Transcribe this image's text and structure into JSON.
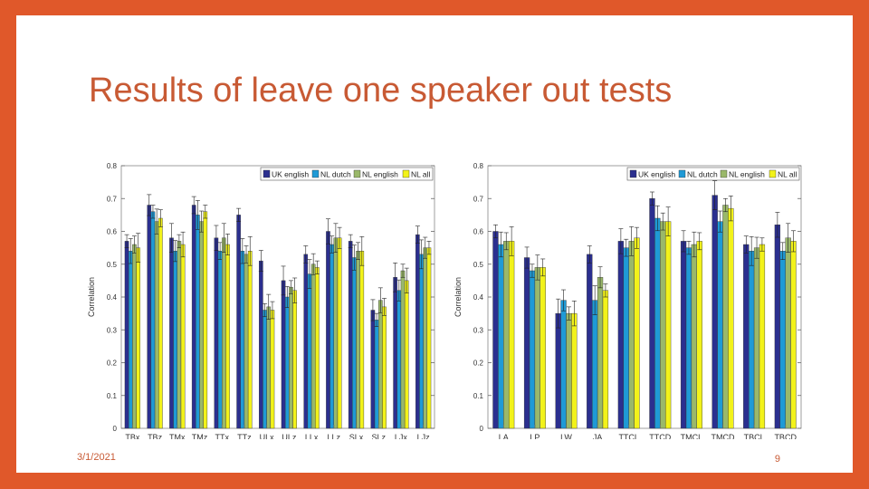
{
  "slide": {
    "title": "Results of leave one speaker out tests",
    "date": "3/1/2021",
    "page_number": "9"
  },
  "colors": {
    "background": "#e0582a",
    "title": "#c85a34",
    "series": [
      "#2b2f8f",
      "#1f9ad6",
      "#9ab86a",
      "#f2f21a"
    ]
  },
  "chart_data": [
    {
      "type": "bar",
      "ylabel": "Correlation",
      "ylim": [
        0,
        0.8
      ],
      "yticks": [
        "0",
        "0.1",
        "0.2",
        "0.3",
        "0.4",
        "0.5",
        "0.6",
        "0.7",
        "0.8"
      ],
      "legend_position": "top-right",
      "grid": false,
      "error_bars": true,
      "categories": [
        "TBx",
        "TBz",
        "TMx",
        "TMz",
        "TTx",
        "TTz",
        "ULx",
        "ULz",
        "LLx",
        "LLz",
        "SLx",
        "SLz",
        "LJx",
        "LJz"
      ],
      "series": [
        {
          "name": "UK english",
          "values": [
            0.57,
            0.68,
            0.58,
            0.68,
            0.58,
            0.65,
            0.51,
            0.45,
            0.53,
            0.6,
            0.57,
            0.36,
            0.46,
            0.59
          ]
        },
        {
          "name": "NL dutch",
          "values": [
            0.54,
            0.66,
            0.54,
            0.65,
            0.54,
            0.54,
            0.36,
            0.4,
            0.47,
            0.56,
            0.52,
            0.33,
            0.42,
            0.53
          ]
        },
        {
          "name": "NL english",
          "values": [
            0.56,
            0.63,
            0.57,
            0.63,
            0.58,
            0.53,
            0.37,
            0.43,
            0.5,
            0.58,
            0.54,
            0.39,
            0.48,
            0.55
          ]
        },
        {
          "name": "NL all",
          "values": [
            0.55,
            0.64,
            0.56,
            0.66,
            0.56,
            0.54,
            0.36,
            0.42,
            0.49,
            0.58,
            0.54,
            0.37,
            0.45,
            0.55
          ]
        }
      ]
    },
    {
      "type": "bar",
      "ylabel": "Correlation",
      "ylim": [
        0,
        0.8
      ],
      "yticks": [
        "0",
        "0.1",
        "0.2",
        "0.3",
        "0.4",
        "0.5",
        "0.6",
        "0.7",
        "0.8"
      ],
      "legend_position": "top-right",
      "grid": false,
      "error_bars": true,
      "categories": [
        "LA",
        "LP",
        "LW",
        "JA",
        "TTCL",
        "TTCD",
        "TMCL",
        "TMCD",
        "TBCL",
        "TBCD"
      ],
      "series": [
        {
          "name": "UK english",
          "values": [
            0.6,
            0.52,
            0.35,
            0.53,
            0.57,
            0.7,
            0.57,
            0.71,
            0.56,
            0.62
          ]
        },
        {
          "name": "NL dutch",
          "values": [
            0.56,
            0.48,
            0.39,
            0.39,
            0.55,
            0.64,
            0.55,
            0.63,
            0.54,
            0.54
          ]
        },
        {
          "name": "NL english",
          "values": [
            0.57,
            0.49,
            0.35,
            0.46,
            0.57,
            0.63,
            0.56,
            0.68,
            0.55,
            0.58
          ]
        },
        {
          "name": "NL all",
          "values": [
            0.57,
            0.49,
            0.35,
            0.42,
            0.58,
            0.63,
            0.57,
            0.67,
            0.56,
            0.57
          ]
        }
      ]
    }
  ]
}
